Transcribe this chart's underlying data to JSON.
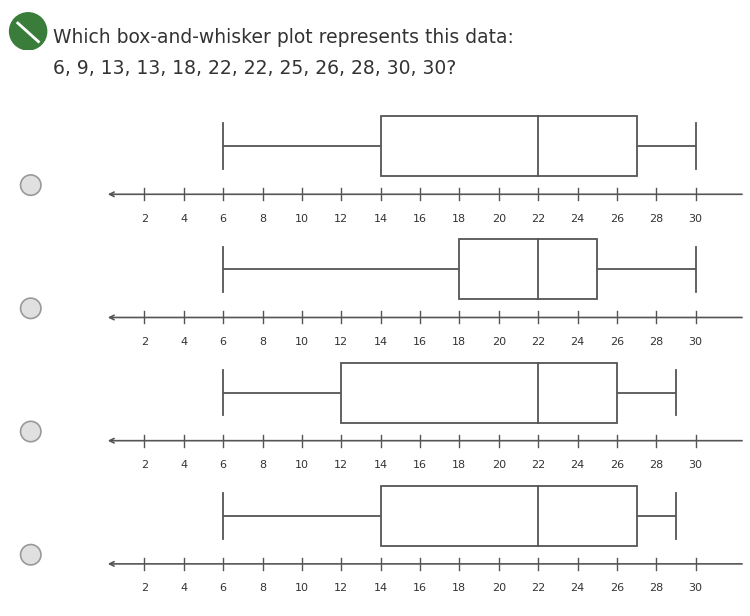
{
  "title_line1": "Which box-and-whisker plot represents this data:",
  "title_line2": "6, 9, 13, 13, 18, 22, 22, 25, 26, 28, 30, 30?",
  "bg_color": "#ffffff",
  "line_color": "#555555",
  "box_facecolor": "#ffffff",
  "box_edgecolor": "#555555",
  "text_color": "#333333",
  "radio_facecolor": "#e0e0e0",
  "radio_edgecolor": "#999999",
  "icon_color": "#3a7d3a",
  "plots": [
    {
      "min": 6,
      "q1": 14,
      "median": 22,
      "q3": 27,
      "max": 30
    },
    {
      "min": 6,
      "q1": 18,
      "median": 22,
      "q3": 25,
      "max": 30
    },
    {
      "min": 6,
      "q1": 12,
      "median": 22,
      "q3": 26,
      "max": 29
    },
    {
      "min": 6,
      "q1": 14,
      "median": 22,
      "q3": 27,
      "max": 29
    }
  ],
  "xmin": 0,
  "xmax": 32,
  "xticks": [
    2,
    4,
    6,
    8,
    10,
    12,
    14,
    16,
    18,
    20,
    22,
    24,
    26,
    28,
    30
  ],
  "xlabel_extra": "3",
  "title_fontsize": 13.5,
  "tick_fontsize": 8,
  "figwidth": 7.5,
  "figheight": 6.16
}
